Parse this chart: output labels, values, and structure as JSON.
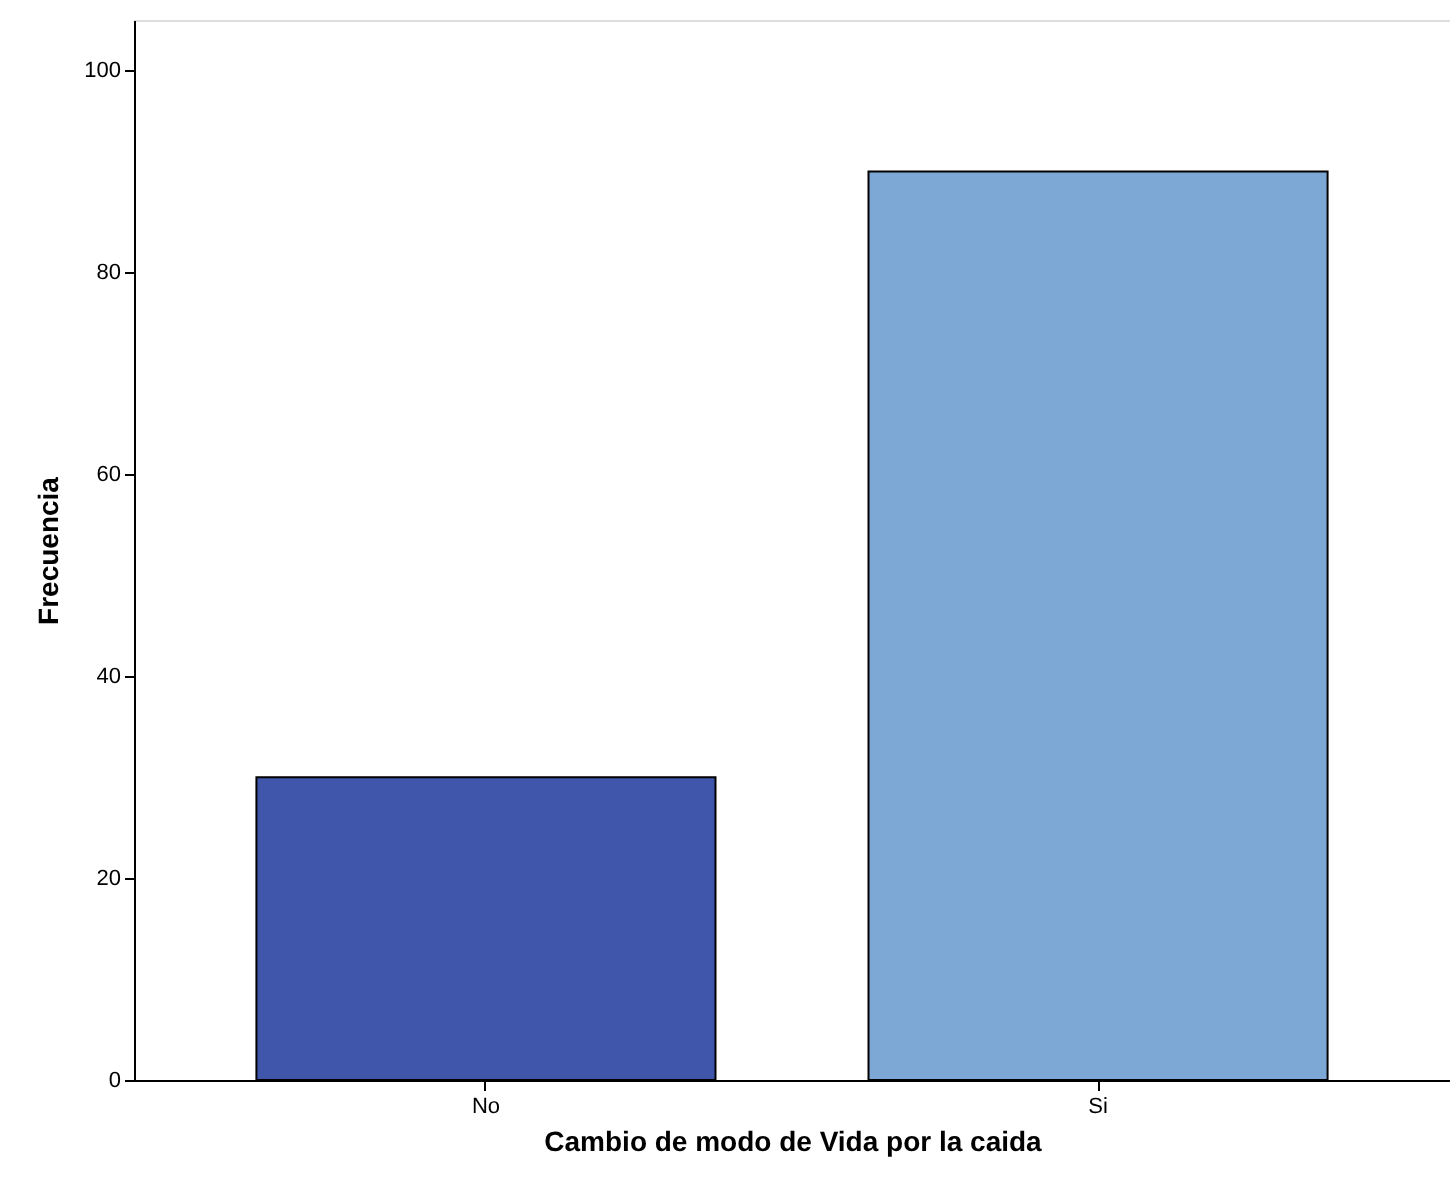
{
  "chart_data": {
    "type": "bar",
    "xlabel": "Cambio de modo de Vida por la caida",
    "ylabel": "Frecuencia",
    "categories": [
      "No",
      "Si"
    ],
    "values": [
      30,
      90
    ],
    "colors": [
      "#3f56ab",
      "#7da8d6"
    ],
    "ylim": [
      0,
      105
    ],
    "yticks": [
      0,
      20,
      40,
      60,
      80,
      100
    ],
    "grid": false
  }
}
